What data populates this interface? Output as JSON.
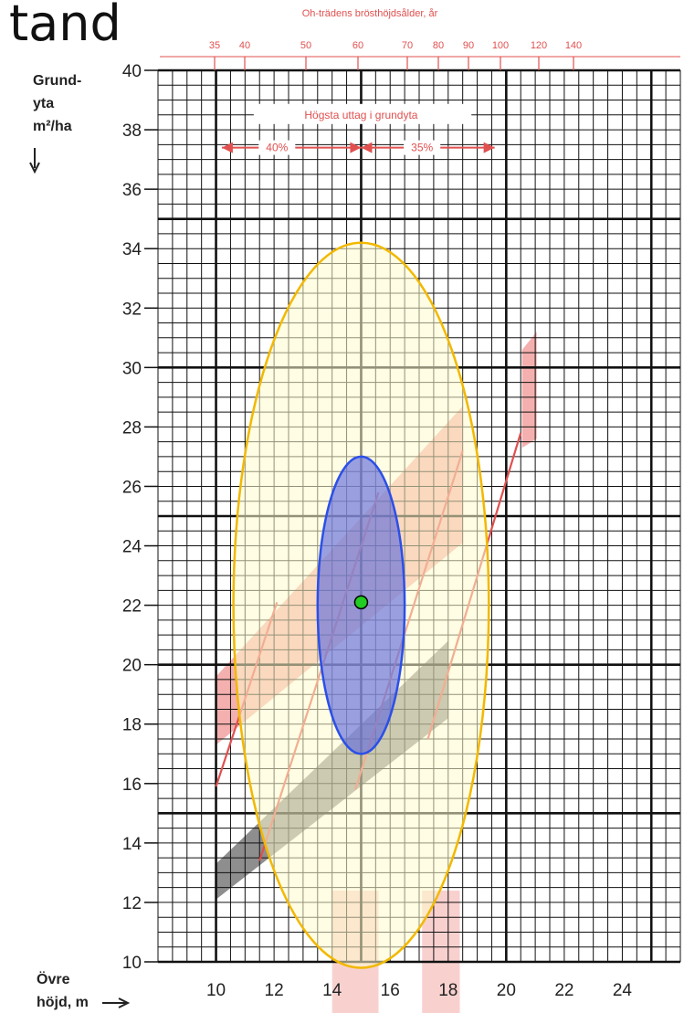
{
  "header_fragment": "tand",
  "chart_data": {
    "type": "line",
    "title": "",
    "top_axis_title": "Oh-trädens brösthöjdsålder, år",
    "top_ticks": [
      "35",
      "40",
      "50",
      "60",
      "70",
      "80",
      "90",
      "100",
      "120",
      "140"
    ],
    "ylabel": [
      "Grund-",
      "yta",
      "m²/ha"
    ],
    "xlabel": [
      "Övre",
      "höjd, m"
    ],
    "x_ticks": [
      10,
      12,
      14,
      16,
      18,
      20,
      22,
      24
    ],
    "y_ticks": [
      10,
      12,
      14,
      16,
      18,
      20,
      22,
      24,
      26,
      28,
      30,
      32,
      34,
      36,
      38,
      40
    ],
    "xlim": [
      8,
      26
    ],
    "ylim": [
      10,
      40
    ],
    "annotation": {
      "title": "Högsta uttag i grundyta",
      "left": "40%",
      "right": "35%"
    },
    "red_lines": [
      {
        "x": [
          10,
          12.1
        ],
        "y": [
          15.9,
          22.1
        ]
      },
      {
        "x": [
          11.5,
          15.6
        ],
        "y": [
          13.4,
          25.8
        ]
      },
      {
        "x": [
          14.8,
          18.5
        ],
        "y": [
          15.8,
          27.2
        ]
      },
      {
        "x": [
          17.3,
          20.5
        ],
        "y": [
          17.5,
          27.8
        ]
      }
    ],
    "upper_band": {
      "x": [
        10,
        18.5
      ],
      "y_low": [
        17.3,
        24.1
      ],
      "y_high": [
        19.6,
        28.7
      ]
    },
    "lower_band": {
      "x": [
        10,
        18
      ],
      "y_low": [
        12.1,
        18.2
      ],
      "y_high": [
        13.3,
        20.8
      ]
    },
    "right_bar": {
      "x": 20.8,
      "y_low": 27.3,
      "y_high": 31.2
    },
    "x_highlights": [
      {
        "from": 14,
        "to": 15.6
      },
      {
        "from": 17.1,
        "to": 18.4
      }
    ],
    "overlays": [
      {
        "name": "yellow-ellipse",
        "center": [
          15,
          22
        ],
        "rx_data": 4.4,
        "ry_data": 12.2,
        "fill": "#fffccc",
        "stroke": "#f2b800"
      },
      {
        "name": "blue-ellipse",
        "center": [
          15,
          22
        ],
        "rx_data": 1.5,
        "ry_data": 5.0,
        "fill": "#5c68dd",
        "stroke": "#2b4fe8"
      }
    ],
    "marker": {
      "x": 15,
      "y": 22.1,
      "color": "#22cc22"
    }
  },
  "colors": {
    "grid": "#111111",
    "red": "#e0504f",
    "pink": "#f4b0ae",
    "gray": "#8e8e8e"
  }
}
